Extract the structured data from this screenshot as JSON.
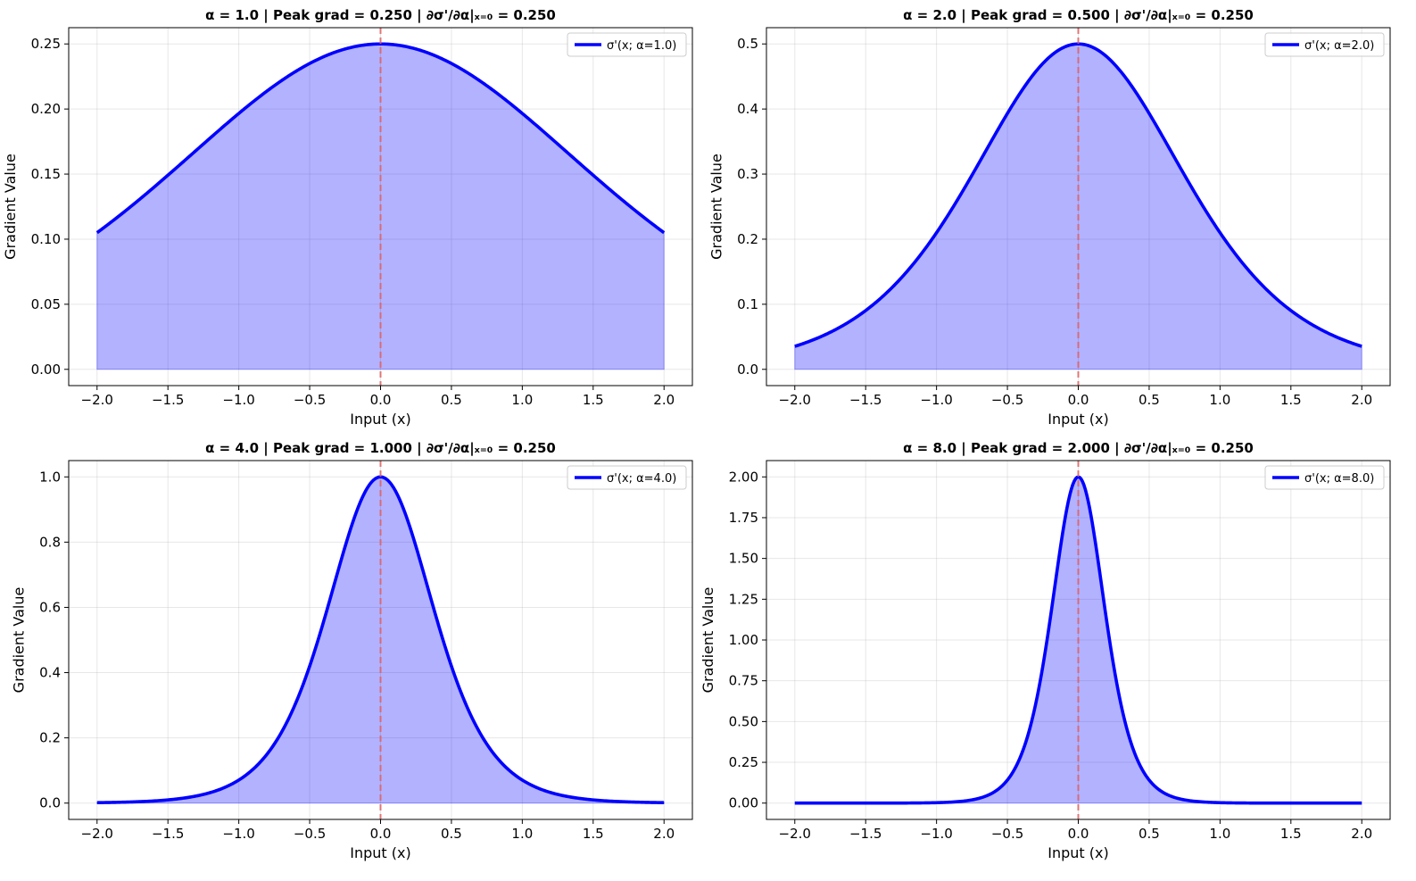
{
  "chart_data": [
    {
      "type": "area",
      "title": "α = 1.0  |  Peak grad = 0.250  |  ∂σ'/∂α|ₓ₌₀ = 0.250",
      "xlabel": "Input (x)",
      "ylabel": "Gradient Value",
      "xlim": [
        -2.2,
        2.2
      ],
      "ylim": [
        -0.0125,
        0.2625
      ],
      "xticks": [
        "−2.0",
        "−1.5",
        "−1.0",
        "−0.5",
        "0.0",
        "0.5",
        "1.0",
        "1.5",
        "2.0"
      ],
      "yticks": [
        "0.00",
        "0.05",
        "0.10",
        "0.15",
        "0.20",
        "0.25"
      ],
      "grid": true,
      "legend_position": "top-right",
      "series": [
        {
          "name": "σ'(x; α=1.0)",
          "alpha": 1.0,
          "color": "#0000ff",
          "fill_color": "#0000ff",
          "x": [
            -2.0,
            -1.75,
            -1.5,
            -1.25,
            -1.0,
            -0.75,
            -0.5,
            -0.25,
            0.0,
            0.25,
            0.5,
            0.75,
            1.0,
            1.25,
            1.5,
            1.75,
            2.0
          ],
          "y": [
            0.105,
            0.128,
            0.149,
            0.172,
            0.197,
            0.22,
            0.235,
            0.246,
            0.25,
            0.246,
            0.235,
            0.22,
            0.197,
            0.172,
            0.149,
            0.128,
            0.105
          ]
        }
      ],
      "vline": {
        "x": 0.0,
        "color": "#e06060"
      }
    },
    {
      "type": "area",
      "title": "α = 2.0  |  Peak grad = 0.500  |  ∂σ'/∂α|ₓ₌₀ = 0.250",
      "xlabel": "Input (x)",
      "ylabel": "Gradient Value",
      "xlim": [
        -2.2,
        2.2
      ],
      "ylim": [
        -0.025,
        0.525
      ],
      "xticks": [
        "−2.0",
        "−1.5",
        "−1.0",
        "−0.5",
        "0.0",
        "0.5",
        "1.0",
        "1.5",
        "2.0"
      ],
      "yticks": [
        "0.0",
        "0.1",
        "0.2",
        "0.3",
        "0.4",
        "0.5"
      ],
      "grid": true,
      "legend_position": "top-right",
      "series": [
        {
          "name": "σ'(x; α=2.0)",
          "alpha": 2.0,
          "color": "#0000ff",
          "fill_color": "#0000ff",
          "x": [
            -2.0,
            -1.75,
            -1.5,
            -1.25,
            -1.0,
            -0.75,
            -0.5,
            -0.25,
            0.0,
            0.25,
            0.5,
            0.75,
            1.0,
            1.25,
            1.5,
            1.75,
            2.0
          ],
          "y": [
            0.035,
            0.058,
            0.09,
            0.14,
            0.21,
            0.296,
            0.393,
            0.47,
            0.5,
            0.47,
            0.393,
            0.296,
            0.21,
            0.14,
            0.09,
            0.058,
            0.035
          ]
        }
      ],
      "vline": {
        "x": 0.0,
        "color": "#e06060"
      }
    },
    {
      "type": "area",
      "title": "α = 4.0  |  Peak grad = 1.000  |  ∂σ'/∂α|ₓ₌₀ = 0.250",
      "xlabel": "Input (x)",
      "ylabel": "Gradient Value",
      "xlim": [
        -2.2,
        2.2
      ],
      "ylim": [
        -0.05,
        1.05
      ],
      "xticks": [
        "−2.0",
        "−1.5",
        "−1.0",
        "−0.5",
        "0.0",
        "0.5",
        "1.0",
        "1.5",
        "2.0"
      ],
      "yticks": [
        "0.0",
        "0.2",
        "0.4",
        "0.6",
        "0.8",
        "1.0"
      ],
      "grid": true,
      "legend_position": "top-right",
      "series": [
        {
          "name": "σ'(x; α=4.0)",
          "alpha": 4.0,
          "color": "#0000ff",
          "fill_color": "#0000ff",
          "x": [
            -2.0,
            -1.75,
            -1.5,
            -1.25,
            -1.0,
            -0.75,
            -0.5,
            -0.25,
            0.0,
            0.25,
            0.5,
            0.75,
            1.0,
            1.25,
            1.5,
            1.75,
            2.0
          ],
          "y": [
            0.001,
            0.004,
            0.01,
            0.027,
            0.071,
            0.181,
            0.42,
            0.786,
            1.0,
            0.786,
            0.42,
            0.181,
            0.071,
            0.027,
            0.01,
            0.004,
            0.001
          ]
        }
      ],
      "vline": {
        "x": 0.0,
        "color": "#e06060"
      }
    },
    {
      "type": "area",
      "title": "α = 8.0  |  Peak grad = 2.000  |  ∂σ'/∂α|ₓ₌₀ = 0.250",
      "xlabel": "Input (x)",
      "ylabel": "Gradient Value",
      "xlim": [
        -2.2,
        2.2
      ],
      "ylim": [
        -0.1,
        2.1
      ],
      "xticks": [
        "−2.0",
        "−1.5",
        "−1.0",
        "−0.5",
        "0.0",
        "0.5",
        "1.0",
        "1.5",
        "2.0"
      ],
      "yticks": [
        "0.00",
        "0.25",
        "0.50",
        "0.75",
        "1.00",
        "1.25",
        "1.50",
        "1.75",
        "2.00"
      ],
      "grid": true,
      "legend_position": "top-right",
      "series": [
        {
          "name": "σ'(x; α=8.0)",
          "alpha": 8.0,
          "color": "#0000ff",
          "fill_color": "#0000ff",
          "x": [
            -2.0,
            -1.5,
            -1.0,
            -0.75,
            -0.5,
            -0.375,
            -0.25,
            -0.125,
            0.0,
            0.125,
            0.25,
            0.375,
            0.5,
            0.75,
            1.0,
            1.5,
            2.0
          ],
          "y": [
            0.0,
            0.0,
            0.003,
            0.02,
            0.141,
            0.377,
            0.839,
            1.573,
            2.0,
            1.573,
            0.839,
            0.377,
            0.141,
            0.02,
            0.003,
            0.0,
            0.0
          ]
        }
      ],
      "vline": {
        "x": 0.0,
        "color": "#e06060"
      }
    }
  ]
}
